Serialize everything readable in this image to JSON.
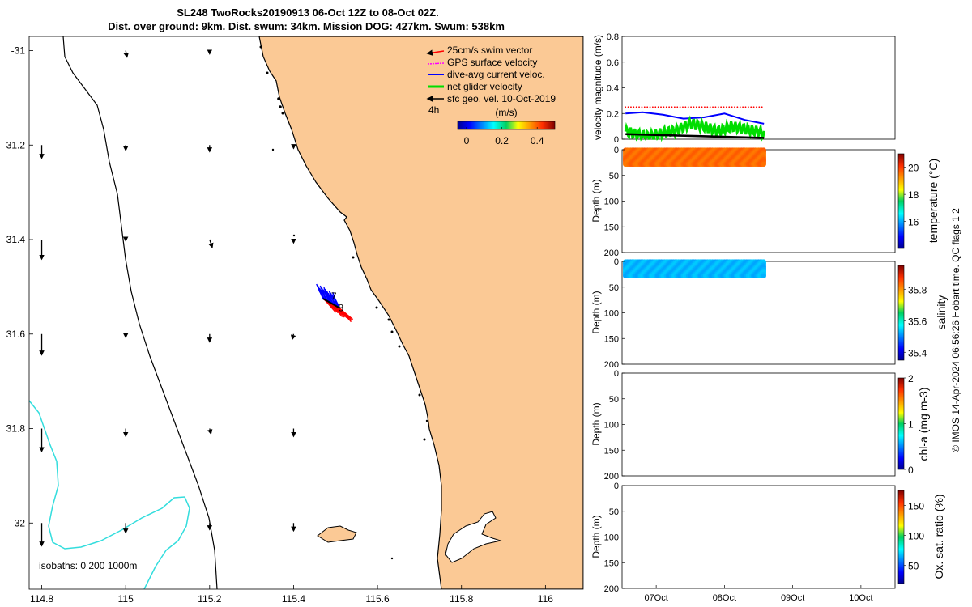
{
  "title": {
    "line1": "SL248 TwoRocks20190913 06-Oct 12Z to 08-Oct 02Z.",
    "line2": "Dist. over ground: 9km. Dist. swum: 34km. Mission DOG: 427km. Swum: 538km"
  },
  "chart_data": [
    {
      "type": "map",
      "name": "glider-track-map",
      "xlim": [
        114.77,
        116.09
      ],
      "ylim": [
        -32.14,
        -30.97
      ],
      "x_ticks": [
        "114.8",
        "115",
        "115.2",
        "115.4",
        "115.6",
        "115.8",
        "116"
      ],
      "x_tick_values": [
        114.8,
        115.0,
        115.2,
        115.4,
        115.6,
        115.8,
        116.0
      ],
      "y_ticks": [
        "-31",
        "31.2",
        "31.4",
        "31.6",
        "31.8",
        "-32"
      ],
      "y_tick_values": [
        -31.0,
        -31.2,
        -31.4,
        -31.6,
        -31.8,
        -32.0
      ],
      "legend": {
        "items": [
          {
            "label": "25cm/s swim vector",
            "color": "#ff0000"
          },
          {
            "label": "GPS surface velocity",
            "color": "#ff00ff"
          },
          {
            "label": "dive-avg current veloc.",
            "color": "#0000ff"
          },
          {
            "label": "net glider velocity",
            "color": "#00dd00"
          },
          {
            "label": "sfc geo. vel. 10-Oct-2019",
            "color": "#000000"
          }
        ],
        "placement": "top-right"
      },
      "scale_label": "4h",
      "colorbar": {
        "label": "(m/s)",
        "ticks": [
          "0",
          "0.2",
          "0.4"
        ],
        "tick_values": [
          0,
          0.2,
          0.4
        ],
        "range": [
          -0.05,
          0.5
        ]
      },
      "isobaths_label": "isobaths: 0   200  1000m",
      "track_labels": [
        "7",
        "8"
      ],
      "track_points": [
        [
          115.47,
          -31.525
        ],
        [
          115.48,
          -31.53
        ],
        [
          115.49,
          -31.535
        ],
        [
          115.5,
          -31.54
        ],
        [
          115.51,
          -31.545
        ]
      ],
      "geo_vectors": [
        {
          "lon": 114.8,
          "lat": -31.2,
          "u": 0.0,
          "v": -0.2
        },
        {
          "lon": 115.0,
          "lat": -31.2,
          "u": 0.0,
          "v": -0.08
        },
        {
          "lon": 115.2,
          "lat": -31.2,
          "u": 0.0,
          "v": -0.1
        },
        {
          "lon": 115.4,
          "lat": -31.2,
          "u": 0.0,
          "v": -0.05
        },
        {
          "lon": 114.8,
          "lat": -31.4,
          "u": 0.0,
          "v": -0.3
        },
        {
          "lon": 115.0,
          "lat": -31.4,
          "u": 0.0,
          "v": -0.02
        },
        {
          "lon": 115.2,
          "lat": -31.4,
          "u": 0.04,
          "v": -0.12
        },
        {
          "lon": 115.4,
          "lat": -31.4,
          "u": 0.0,
          "v": -0.05
        },
        {
          "lon": 114.8,
          "lat": -31.6,
          "u": 0.0,
          "v": -0.32
        },
        {
          "lon": 115.0,
          "lat": -31.6,
          "u": 0.0,
          "v": -0.05
        },
        {
          "lon": 115.2,
          "lat": -31.6,
          "u": 0.0,
          "v": -0.12
        },
        {
          "lon": 115.4,
          "lat": -31.6,
          "u": -0.02,
          "v": -0.08
        },
        {
          "lon": 114.8,
          "lat": -31.8,
          "u": 0.0,
          "v": -0.35
        },
        {
          "lon": 115.0,
          "lat": -31.8,
          "u": 0.0,
          "v": -0.12
        },
        {
          "lon": 115.2,
          "lat": -31.8,
          "u": 0.02,
          "v": -0.08
        },
        {
          "lon": 115.4,
          "lat": -31.8,
          "u": 0.0,
          "v": -0.12
        },
        {
          "lon": 114.8,
          "lat": -32.0,
          "u": 0.0,
          "v": -0.35
        },
        {
          "lon": 115.0,
          "lat": -32.0,
          "u": 0.0,
          "v": -0.15
        },
        {
          "lon": 115.2,
          "lat": -32.0,
          "u": 0.0,
          "v": -0.1
        },
        {
          "lon": 115.4,
          "lat": -32.0,
          "u": 0.0,
          "v": -0.12
        },
        {
          "lon": 115.0,
          "lat": -31.0,
          "u": 0.02,
          "v": -0.1
        },
        {
          "lon": 115.2,
          "lat": -31.0,
          "u": 0.0,
          "v": -0.05
        }
      ]
    },
    {
      "type": "line",
      "name": "velocity-magnitude-panel",
      "ylabel": "velocity magnitude (m/s)",
      "ylim": [
        0,
        0.8
      ],
      "y_ticks": [
        "0",
        "0.2",
        "0.4",
        "0.6",
        "0.8"
      ],
      "y_tick_values": [
        0,
        0.2,
        0.4,
        0.6,
        0.8
      ],
      "xlim": [
        0,
        4
      ],
      "series": [
        {
          "name": "swim",
          "color": "#ff0000",
          "x": [
            0.05,
            0.5,
            1.0,
            1.5,
            2.08
          ],
          "values": [
            0.25,
            0.25,
            0.25,
            0.25,
            0.25
          ]
        },
        {
          "name": "dive-avg current",
          "color": "#0000ff",
          "x": [
            0.05,
            0.3,
            0.6,
            0.9,
            1.2,
            1.5,
            1.8,
            2.08
          ],
          "values": [
            0.2,
            0.21,
            0.19,
            0.16,
            0.17,
            0.2,
            0.15,
            0.12
          ]
        },
        {
          "name": "net glider",
          "color": "#00dd00",
          "x": [
            0.05,
            0.2,
            0.4,
            0.6,
            0.8,
            1.0,
            1.2,
            1.4,
            1.6,
            1.8,
            2.0,
            2.08
          ],
          "values": [
            0.06,
            0.04,
            0.02,
            0.05,
            0.07,
            0.12,
            0.1,
            0.06,
            0.1,
            0.08,
            0.06,
            0.04
          ]
        },
        {
          "name": "sfc geo",
          "color": "#000000",
          "x": [
            0.05,
            2.08
          ],
          "values": [
            0.04,
            0.01
          ]
        }
      ]
    },
    {
      "type": "scatter",
      "name": "temperature-panel",
      "ylabel": "Depth (m)",
      "ylim": [
        0,
        200
      ],
      "y_ticks": [
        "0",
        "50",
        "100",
        "150",
        "200"
      ],
      "y_tick_values": [
        0,
        50,
        100,
        150,
        200
      ],
      "colorbar": {
        "label": "temperature (°C)",
        "ticks": [
          "16",
          "18",
          "20"
        ],
        "tick_values": [
          16,
          18,
          20
        ],
        "range": [
          14,
          21
        ]
      },
      "data_extent": {
        "x": [
          0.05,
          2.08
        ],
        "depth": [
          0,
          30
        ],
        "value": 19.6
      }
    },
    {
      "type": "scatter",
      "name": "salinity-panel",
      "ylabel": "Depth (m)",
      "ylim": [
        0,
        200
      ],
      "y_ticks": [
        "0",
        "50",
        "100",
        "150",
        "200"
      ],
      "y_tick_values": [
        0,
        50,
        100,
        150,
        200
      ],
      "colorbar": {
        "label": "salinity",
        "ticks": [
          "35.4",
          "35.6",
          "35.8"
        ],
        "tick_values": [
          35.4,
          35.6,
          35.8
        ],
        "range": [
          35.35,
          35.95
        ]
      },
      "data_extent": {
        "x": [
          0.05,
          2.08
        ],
        "depth": [
          0,
          30
        ],
        "value": 35.53
      }
    },
    {
      "type": "scatter",
      "name": "chla-panel",
      "ylabel": "Depth (m)",
      "ylim": [
        0,
        200
      ],
      "y_ticks": [
        "0",
        "50",
        "100",
        "150",
        "200"
      ],
      "y_tick_values": [
        0,
        50,
        100,
        150,
        200
      ],
      "colorbar": {
        "label": "chl-a (mg m-3)",
        "ticks": [
          "0",
          "1",
          "2"
        ],
        "tick_values": [
          0,
          1,
          2
        ],
        "range": [
          0,
          2
        ]
      }
    },
    {
      "type": "scatter",
      "name": "oxygen-panel",
      "ylabel": "Depth (m)",
      "ylim": [
        0,
        200
      ],
      "y_ticks": [
        "0",
        "50",
        "100",
        "150",
        "200"
      ],
      "y_tick_values": [
        0,
        50,
        100,
        150,
        200
      ],
      "x_ticks": [
        "07Oct",
        "08Oct",
        "09Oct",
        "10Oct"
      ],
      "x_tick_values": [
        0.5,
        1.5,
        2.5,
        3.5
      ],
      "xlim": [
        0,
        4
      ],
      "colorbar": {
        "label": "Ox. sat. ratio (%)",
        "ticks": [
          "50",
          "100",
          "150"
        ],
        "tick_values": [
          50,
          100,
          150
        ],
        "range": [
          20,
          175
        ]
      }
    }
  ],
  "side_note": "© IMOS 14-Apr-2024 06:56:26 Hobart time. QC flags 1  2"
}
